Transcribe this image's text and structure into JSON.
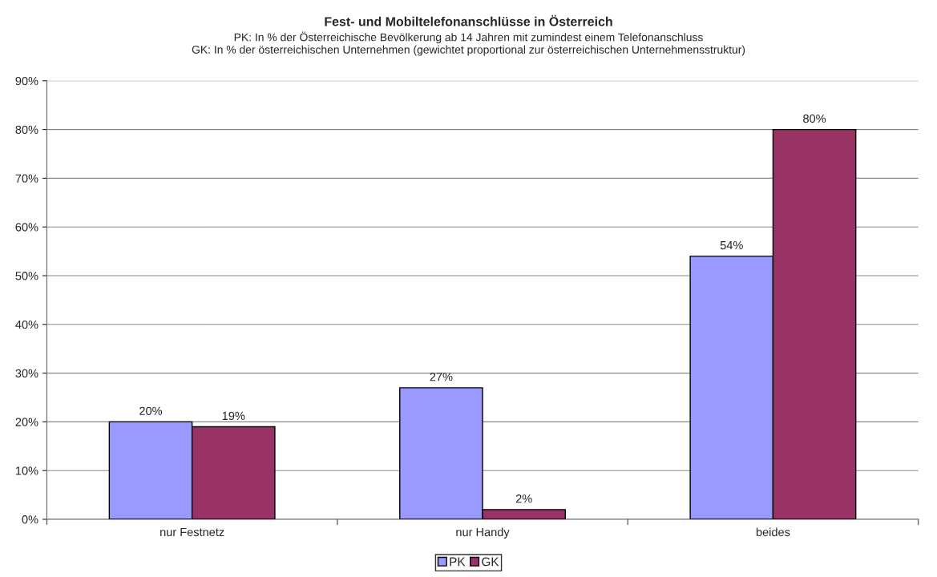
{
  "chart_data": {
    "type": "bar",
    "title": "Fest- und Mobiltelefonanschlüsse in Österreich",
    "subtitle": "PK: In % der Österreichische Bevölkerung ab 14 Jahren mit zumindest einem Telefonanschluss\nGK: In % der österreichischen Unternehmen (gewichtet proportional zur österreichischen Unternehmensstruktur)",
    "categories": [
      "nur Festnetz",
      "nur Handy",
      "beides"
    ],
    "series": [
      {
        "name": "PK",
        "color": "#9999ff",
        "values": [
          20,
          27,
          54
        ],
        "value_labels": [
          "20%",
          "27%",
          "54%"
        ]
      },
      {
        "name": "GK",
        "color": "#993366",
        "values": [
          19,
          2,
          80
        ],
        "value_labels": [
          "19%",
          "2%",
          "80%"
        ]
      }
    ],
    "ylim": [
      0,
      90
    ],
    "yticks": [
      {
        "value": 0,
        "label": "0%"
      },
      {
        "value": 10,
        "label": "10%"
      },
      {
        "value": 20,
        "label": "20%"
      },
      {
        "value": 30,
        "label": "30%"
      },
      {
        "value": 40,
        "label": "40%"
      },
      {
        "value": 50,
        "label": "50%"
      },
      {
        "value": 60,
        "label": "60%"
      },
      {
        "value": 70,
        "label": "70%"
      },
      {
        "value": 80,
        "label": "80%"
      },
      {
        "value": 90,
        "label": "90%"
      }
    ],
    "grid": "y",
    "legend": "bottom"
  }
}
